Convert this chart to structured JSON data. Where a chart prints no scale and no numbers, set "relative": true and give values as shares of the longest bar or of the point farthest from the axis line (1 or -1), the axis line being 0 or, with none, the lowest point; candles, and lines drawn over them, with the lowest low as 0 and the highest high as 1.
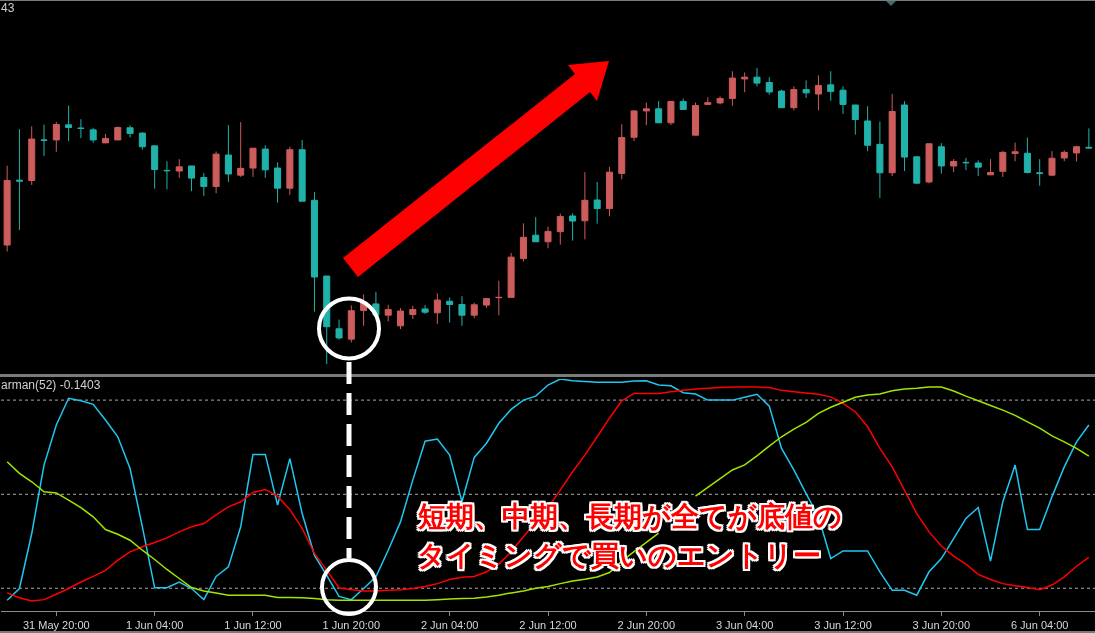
{
  "chart_data": [
    {
      "type": "candlestick",
      "title": "43",
      "categories": [
        null,
        null,
        null,
        null,
        null,
        null,
        null,
        null,
        null,
        null,
        null,
        null,
        null,
        null,
        null,
        null,
        null,
        null,
        null,
        null,
        null,
        null,
        null,
        null,
        null,
        null,
        null,
        null,
        null,
        null,
        null,
        null,
        null,
        null,
        null,
        null,
        null,
        null,
        null,
        null,
        null,
        null,
        null,
        null,
        null,
        null,
        null,
        null,
        null,
        null,
        null,
        null,
        null,
        null,
        null,
        null,
        null,
        null,
        null,
        null,
        null,
        null,
        null,
        null,
        null,
        null,
        null,
        null,
        null,
        null,
        null,
        null,
        null,
        null,
        null,
        null,
        null,
        null,
        null,
        null,
        null,
        null,
        null,
        null,
        null,
        null,
        null,
        null,
        null
      ],
      "ohlc": [
        [
          0.402,
          0.67,
          0.38,
          0.62
        ],
        [
          0.621,
          0.793,
          0.453,
          0.618
        ],
        [
          0.62,
          0.803,
          0.605,
          0.76
        ],
        [
          0.757,
          0.809,
          0.703,
          0.756
        ],
        [
          0.757,
          0.818,
          0.717,
          0.809
        ],
        [
          0.808,
          0.873,
          0.753,
          0.799
        ],
        [
          0.797,
          0.827,
          0.763,
          0.796
        ],
        [
          0.791,
          0.798,
          0.747,
          0.757
        ],
        [
          0.747,
          0.777,
          0.747,
          0.762
        ],
        [
          0.757,
          0.802,
          0.757,
          0.799
        ],
        [
          0.798,
          0.806,
          0.765,
          0.779
        ],
        [
          0.78,
          0.783,
          0.724,
          0.734
        ],
        [
          0.737,
          0.737,
          0.592,
          0.657
        ],
        [
          0.654,
          0.685,
          0.59,
          0.653
        ],
        [
          0.652,
          0.692,
          0.629,
          0.666
        ],
        [
          0.669,
          0.669,
          0.584,
          0.628
        ],
        [
          0.63,
          0.645,
          0.568,
          0.6
        ],
        [
          0.6,
          0.718,
          0.577,
          0.709
        ],
        [
          0.706,
          0.807,
          0.615,
          0.642
        ],
        [
          0.638,
          0.817,
          0.632,
          0.661
        ],
        [
          0.662,
          0.729,
          0.632,
          0.729
        ],
        [
          0.726,
          0.739,
          0.629,
          0.656
        ],
        [
          0.662,
          0.681,
          0.545,
          0.594
        ],
        [
          0.594,
          0.734,
          0.571,
          0.724
        ],
        [
          0.724,
          0.757,
          0.55,
          0.55
        ],
        [
          0.553,
          0.581,
          0.177,
          0.294
        ],
        [
          0.297,
          0.297,
          0,
          0.126
        ],
        [
          0.119,
          0.15,
          0.082,
          0.088
        ],
        [
          0.084,
          0.198,
          0.073,
          0.18
        ],
        [
          0.181,
          0.235,
          0.129,
          0.207
        ],
        [
          0.203,
          0.244,
          0.166,
          0.166
        ],
        [
          0.165,
          0.2,
          0.144,
          0.184
        ],
        [
          0.129,
          0.189,
          0.118,
          0.179
        ],
        [
          0.167,
          0.197,
          0.152,
          0.184
        ],
        [
          0.186,
          0.199,
          0.169,
          0.175
        ],
        [
          0.173,
          0.239,
          0.135,
          0.216
        ],
        [
          0.212,
          0.225,
          0.14,
          0.201
        ],
        [
          0.201,
          0.229,
          0.129,
          0.165
        ],
        [
          0.165,
          0.207,
          0.155,
          0.2
        ],
        [
          0.199,
          0.221,
          0.19,
          0.221
        ],
        [
          0.224,
          0.281,
          0.165,
          0.225
        ],
        [
          0.225,
          0.375,
          0.225,
          0.361
        ],
        [
          0.356,
          0.475,
          0.346,
          0.428
        ],
        [
          0.435,
          0.496,
          0.413,
          0.413
        ],
        [
          0.413,
          0.464,
          0.391,
          0.448
        ],
        [
          0.447,
          0.508,
          0.403,
          0.498
        ],
        [
          0.5,
          0.509,
          0.417,
          0.483
        ],
        [
          0.484,
          0.648,
          0.421,
          0.553
        ],
        [
          0.554,
          0.615,
          0.474,
          0.525
        ],
        [
          0.525,
          0.666,
          0.499,
          0.648
        ],
        [
          0.644,
          0.81,
          0.624,
          0.765
        ],
        [
          0.766,
          0.857,
          0.753,
          0.855
        ],
        [
          0.855,
          0.883,
          0.807,
          0.862
        ],
        [
          0.862,
          0.888,
          0.815,
          0.815
        ],
        [
          0.815,
          0.887,
          0.807,
          0.887
        ],
        [
          0.887,
          0.897,
          0.86,
          0.86
        ],
        [
          0.773,
          0.883,
          0.773,
          0.873
        ],
        [
          0.877,
          0.901,
          0.877,
          0.883
        ],
        [
          0.882,
          0.904,
          0.877,
          0.897
        ],
        [
          0.897,
          0.989,
          0.872,
          0.966
        ],
        [
          0.963,
          0.985,
          0.918,
          0.969
        ],
        [
          0.969,
          1,
          0.938,
          0.949
        ],
        [
          0.951,
          0.969,
          0.91,
          0.919
        ],
        [
          0.922,
          0.927,
          0.866,
          0.866
        ],
        [
          0.866,
          0.938,
          0.857,
          0.927
        ],
        [
          0.927,
          0.958,
          0.899,
          0.916
        ],
        [
          0.912,
          0.975,
          0.857,
          0.941
        ],
        [
          0.943,
          0.989,
          0.889,
          0.921
        ],
        [
          0.925,
          0.938,
          0.845,
          0.877
        ],
        [
          0.875,
          0.875,
          0.775,
          0.826
        ],
        [
          0.821,
          0.871,
          0.719,
          0.739
        ],
        [
          0.742,
          0.819,
          0.561,
          0.646
        ],
        [
          0.646,
          0.912,
          0.635,
          0.853
        ],
        [
          0.875,
          0.888,
          0.652,
          0.699
        ],
        [
          0.7,
          0.7,
          0.608,
          0.611
        ],
        [
          0.615,
          0.744,
          0.61,
          0.744
        ],
        [
          0.734,
          0.746,
          0.643,
          0.669
        ],
        [
          0.669,
          0.692,
          0.648,
          0.684
        ],
        [
          0.681,
          0.696,
          0.655,
          0.68
        ],
        [
          0.679,
          0.688,
          0.635,
          0.665
        ],
        [
          0.639,
          0.692,
          0.639,
          0.647
        ],
        [
          0.651,
          0.72,
          0.632,
          0.715
        ],
        [
          0.711,
          0.748,
          0.685,
          0.717
        ],
        [
          0.712,
          0.765,
          0.644,
          0.647
        ],
        [
          0.646,
          0.692,
          0.602,
          0.644
        ],
        [
          0.638,
          0.719,
          0.636,
          0.695
        ],
        [
          0.696,
          0.722,
          0.685,
          0.715
        ],
        [
          0.713,
          0.737,
          0.684,
          0.734
        ],
        [
          0.732,
          0.796,
          0.727,
          0.73
        ]
      ],
      "colors": [
        "#cd5c5c",
        "#20b2aa",
        "#cd5c5c",
        "#20b2aa",
        "#cd5c5c",
        "#20b2aa",
        "#20b2aa",
        "#20b2aa",
        "#cd5c5c",
        "#cd5c5c",
        "#20b2aa",
        "#20b2aa",
        "#20b2aa",
        "#20b2aa",
        "#cd5c5c",
        "#20b2aa",
        "#20b2aa",
        "#cd5c5c",
        "#20b2aa",
        "#cd5c5c",
        "#cd5c5c",
        "#20b2aa",
        "#20b2aa",
        "#cd5c5c",
        "#20b2aa",
        "#20b2aa",
        "#20b2aa",
        "#20b2aa",
        "#cd5c5c",
        "#cd5c5c",
        "#20b2aa",
        "#cd5c5c",
        "#cd5c5c",
        "#cd5c5c",
        "#20b2aa",
        "#cd5c5c",
        "#20b2aa",
        "#20b2aa",
        "#cd5c5c",
        "#cd5c5c",
        "#cd5c5c",
        "#cd5c5c",
        "#cd5c5c",
        "#20b2aa",
        "#cd5c5c",
        "#cd5c5c",
        "#20b2aa",
        "#cd5c5c",
        "#20b2aa",
        "#cd5c5c",
        "#cd5c5c",
        "#cd5c5c",
        "#cd5c5c",
        "#20b2aa",
        "#cd5c5c",
        "#20b2aa",
        "#cd5c5c",
        "#cd5c5c",
        "#cd5c5c",
        "#cd5c5c",
        "#cd5c5c",
        "#20b2aa",
        "#20b2aa",
        "#20b2aa",
        "#cd5c5c",
        "#20b2aa",
        "#cd5c5c",
        "#20b2aa",
        "#20b2aa",
        "#20b2aa",
        "#20b2aa",
        "#20b2aa",
        "#cd5c5c",
        "#20b2aa",
        "#20b2aa",
        "#cd5c5c",
        "#20b2aa",
        "#cd5c5c",
        "#20b2aa",
        "#20b2aa",
        "#cd5c5c",
        "#cd5c5c",
        "#cd5c5c",
        "#20b2aa",
        "#20b2aa",
        "#cd5c5c",
        "#cd5c5c",
        "#cd5c5c",
        "#20b2aa"
      ],
      "relative": true,
      "tick_labels": false
    },
    {
      "type": "line",
      "title": "arman(52) -0.1403",
      "categories": [
        null,
        null,
        null,
        null,
        "31 May 20:00",
        null,
        null,
        null,
        null,
        null,
        null,
        null,
        "1 Jun 04:00",
        null,
        null,
        null,
        null,
        null,
        null,
        null,
        "1 Jun 12:00",
        null,
        null,
        null,
        null,
        null,
        null,
        null,
        "1 Jun 20:00",
        null,
        null,
        null,
        null,
        null,
        null,
        null,
        "2 Jun 04:00",
        null,
        null,
        null,
        null,
        null,
        null,
        null,
        "2 Jun 12:00",
        null,
        null,
        null,
        null,
        null,
        null,
        null,
        "2 Jun 20:00",
        null,
        null,
        null,
        null,
        null,
        null,
        null,
        "3 Jun 04:00",
        null,
        null,
        null,
        null,
        null,
        null,
        null,
        "3 Jun 12:00",
        null,
        null,
        null,
        null,
        null,
        null,
        null,
        "3 Jun 20:00",
        null,
        null,
        null,
        null,
        null,
        null,
        null,
        "6 Jun 04:00",
        null,
        null,
        null,
        null
      ],
      "series": [
        {
          "color": "#1ec8f0",
          "values": [
            0.046,
            0.097,
            0.334,
            0.629,
            0.802,
            0.917,
            0.906,
            0.891,
            0.823,
            0.751,
            0.614,
            0.363,
            0.1,
            0.1,
            0.125,
            0.097,
            0.049,
            0.149,
            0.19,
            0.363,
            0.675,
            0.675,
            0.457,
            0.657,
            0.42,
            0.24,
            0.154,
            0.063,
            0.049,
            0.097,
            0.147,
            0.262,
            0.384,
            0.564,
            0.732,
            0.741,
            0.672,
            0.471,
            0.662,
            0.723,
            0.809,
            0.869,
            0.909,
            0.926,
            0.974,
            1,
            0.992,
            0.989,
            0.986,
            0.986,
            0.986,
            0.991,
            0.992,
            0.974,
            0.971,
            0.941,
            0.935,
            0.909,
            0.909,
            0.909,
            0.921,
            0.934,
            0.883,
            0.701,
            0.608,
            0.506,
            0.406,
            0.226,
            0.259,
            0.259,
            0.259,
            0.169,
            0.089,
            0.089,
            0.068,
            0.169,
            0.226,
            0.312,
            0.399,
            0.446,
            0.215,
            0.471,
            0.629,
            0.351,
            0.351,
            0.492,
            0.621,
            0.729,
            0.802
          ]
        },
        {
          "color": "#ff0000",
          "values": [
            0.078,
            0.057,
            0.043,
            0.049,
            0.072,
            0.097,
            0.125,
            0.149,
            0.175,
            0.219,
            0.255,
            0.277,
            0.295,
            0.315,
            0.341,
            0.363,
            0.377,
            0.414,
            0.449,
            0.471,
            0.511,
            0.524,
            0.495,
            0.437,
            0.356,
            0.248,
            0.175,
            0.1,
            0.092,
            0.086,
            0.086,
            0.089,
            0.092,
            0.097,
            0.106,
            0.118,
            0.136,
            0.145,
            0.149,
            0.169,
            0.202,
            0.255,
            0.32,
            0.384,
            0.446,
            0.521,
            0.6,
            0.672,
            0.751,
            0.831,
            0.906,
            0.938,
            0.938,
            0.938,
            0.945,
            0.952,
            0.957,
            0.96,
            0.963,
            0.965,
            0.965,
            0.965,
            0.963,
            0.951,
            0.945,
            0.94,
            0.934,
            0.923,
            0.895,
            0.859,
            0.794,
            0.701,
            0.621,
            0.521,
            0.42,
            0.341,
            0.28,
            0.237,
            0.202,
            0.158,
            0.136,
            0.118,
            0.109,
            0.101,
            0.092,
            0.112,
            0.147,
            0.193,
            0.231
          ]
        },
        {
          "color": "#a2e600",
          "values": [
            0.643,
            0.593,
            0.557,
            0.514,
            0.509,
            0.478,
            0.446,
            0.406,
            0.351,
            0.331,
            0.305,
            0.262,
            0.222,
            0.179,
            0.14,
            0.101,
            0.086,
            0.078,
            0.068,
            0.068,
            0.068,
            0.068,
            0.058,
            0.058,
            0.057,
            0.054,
            0.049,
            0.046,
            0.046,
            0.046,
            0.046,
            0.046,
            0.046,
            0.046,
            0.046,
            0.049,
            0.052,
            0.054,
            0.055,
            0.06,
            0.068,
            0.078,
            0.086,
            0.098,
            0.106,
            0.118,
            0.129,
            0.137,
            0.147,
            0.166,
            0.215,
            0.256,
            0.296,
            0.336,
            null,
            null,
            0.495,
            0.533,
            0.571,
            0.608,
            0.63,
            0.669,
            0.711,
            0.751,
            0.784,
            0.813,
            0.852,
            0.878,
            0.9,
            0.921,
            0.931,
            0.935,
            0.949,
            0.957,
            0.96,
            0.965,
            0.965,
            0.948,
            0.926,
            0.906,
            0.886,
            0.866,
            0.843,
            0.815,
            0.788,
            0.755,
            0.729,
            0.701,
            0.668
          ]
        }
      ],
      "relative": true,
      "tick_labels": "x",
      "ref_lines": [
        {
          "axis": "y",
          "value": 0.909,
          "line_style": "dotted",
          "color": "#a9a9a9"
        },
        {
          "axis": "y",
          "value": 0.503,
          "line_style": "dotted",
          "color": "#a9a9a9"
        },
        {
          "axis": "y",
          "value": 0.098,
          "line_style": "dotted",
          "color": "#a9a9a9"
        }
      ],
      "annotations": [
        "短期、中期、長期が全てが底値の",
        "タイミングで買いのエントリー"
      ]
    }
  ]
}
